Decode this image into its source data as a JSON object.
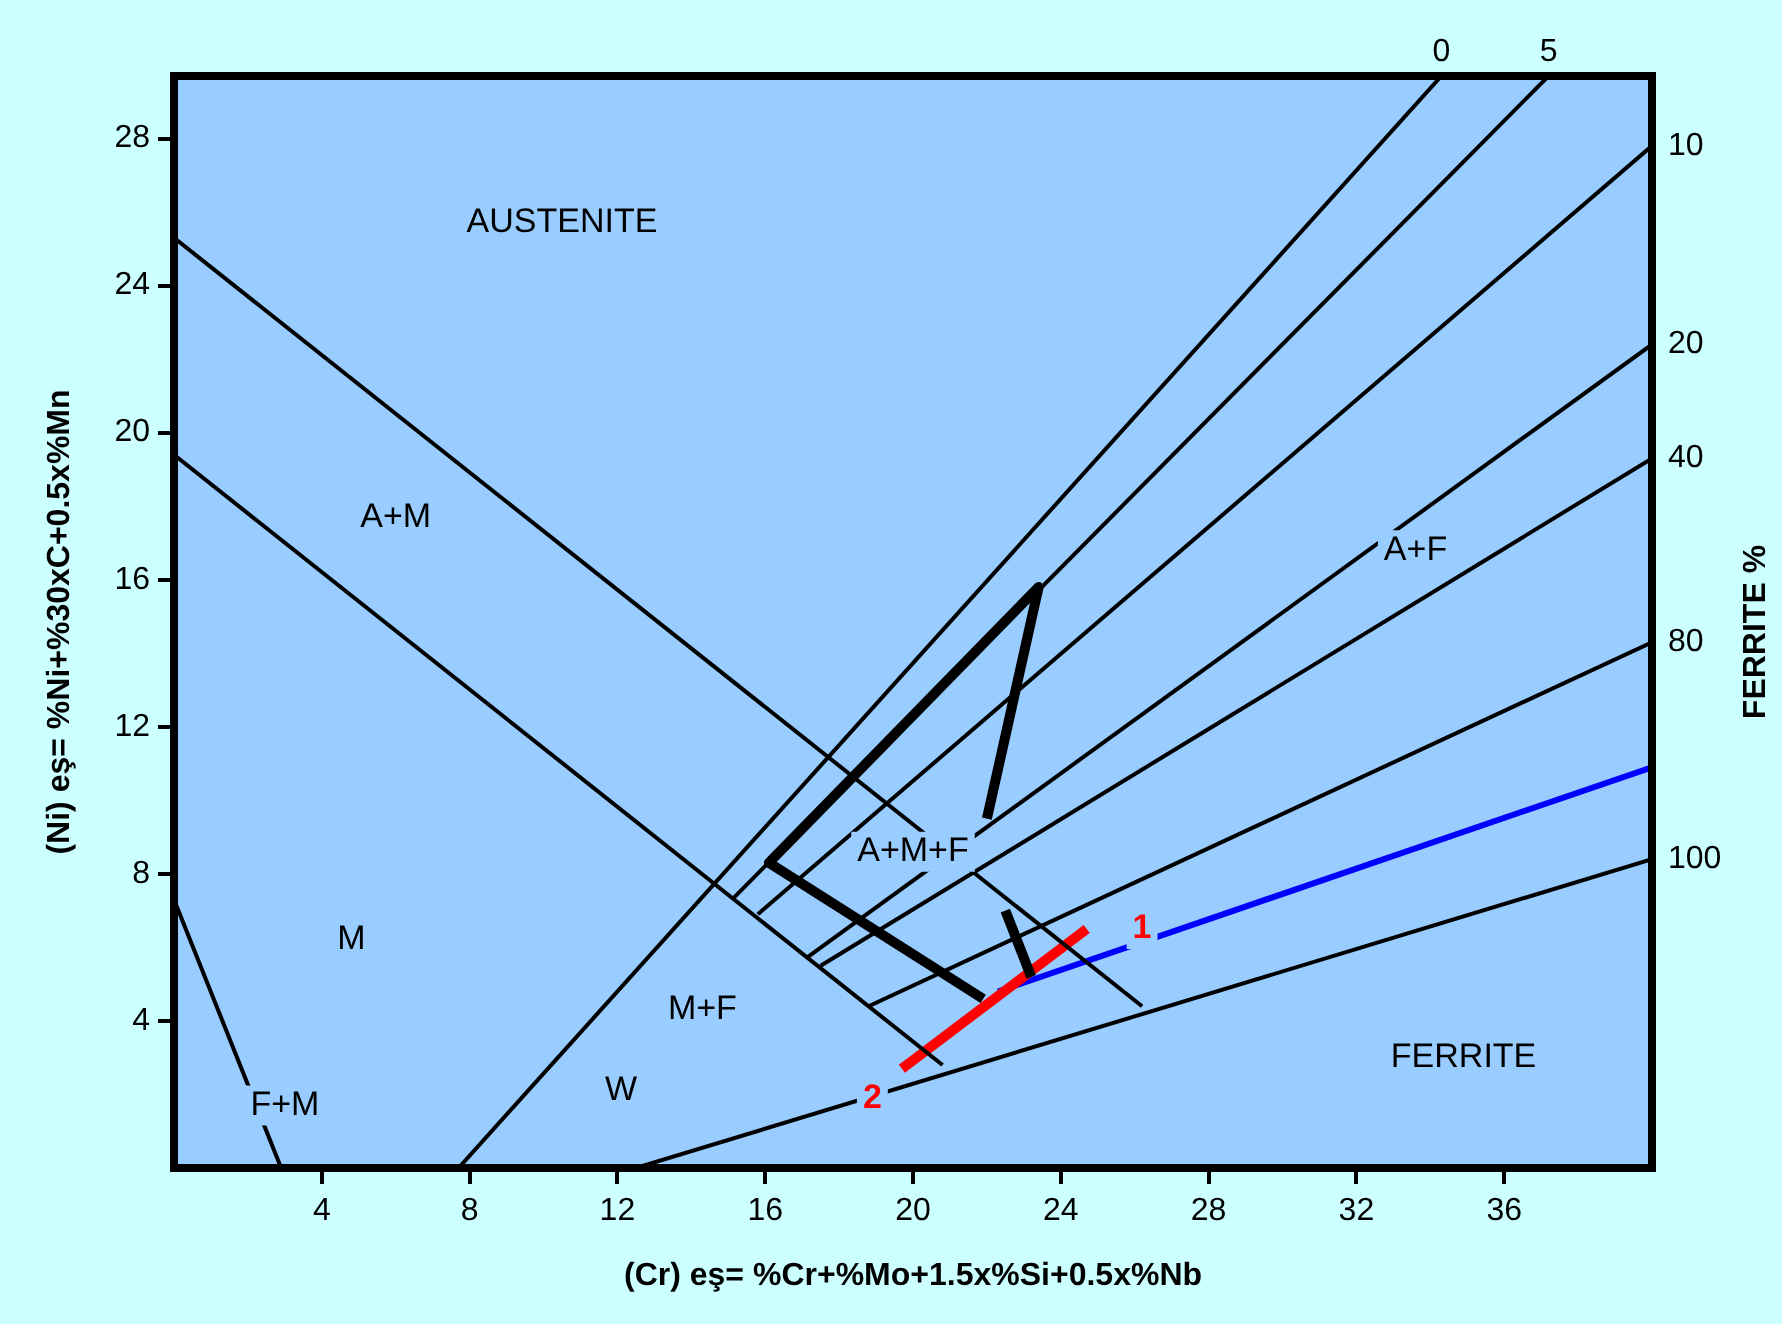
{
  "chart_data": {
    "type": "line",
    "xlabel": "(Cr) eş= %Cr+%Mo+1.5x%Si+0.5x%Nb",
    "ylabel": "(Ni) eş= %Ni+%30xC+0.5x%Mn",
    "y2label": "FERRITE %",
    "xlim": [
      0,
      40
    ],
    "ylim": [
      0,
      29.7
    ],
    "xticks": [
      4,
      8,
      12,
      16,
      20,
      24,
      28,
      32,
      36
    ],
    "yticks": [
      4,
      8,
      12,
      16,
      20,
      24,
      28
    ],
    "grid": false,
    "legend": false,
    "marker": "none",
    "series": [
      {
        "name": "0",
        "color": "#000000",
        "x": [
          7.7,
          34.3
        ],
        "values": [
          0,
          29.7
        ]
      },
      {
        "name": "5",
        "color": "#000000",
        "x": [
          15.1,
          37.2
        ],
        "values": [
          7.3,
          29.7
        ]
      },
      {
        "name": "10",
        "color": "#000000",
        "x": [
          15.8,
          40
        ],
        "values": [
          6.9,
          27.8
        ]
      },
      {
        "name": "20",
        "color": "#000000",
        "x": [
          17.1,
          40
        ],
        "values": [
          5.7,
          22.4
        ]
      },
      {
        "name": "40",
        "color": "#000000",
        "x": [
          17.5,
          40
        ],
        "values": [
          5.5,
          19.3
        ]
      },
      {
        "name": "80",
        "color": "#000000",
        "x": [
          18.8,
          40
        ],
        "values": [
          4.4,
          14.3
        ]
      },
      {
        "name": "100",
        "color": "#000000",
        "x": [
          12.5,
          40
        ],
        "values": [
          0,
          8.4
        ]
      },
      {
        "color": "#000000",
        "x": [
          0,
          26.2
        ],
        "values": [
          25.3,
          4.4
        ]
      },
      {
        "color": "#000000",
        "x": [
          0,
          20.8
        ],
        "values": [
          19.4,
          2.8
        ]
      },
      {
        "color": "#000000",
        "x": [
          0,
          2.9
        ],
        "values": [
          7.3,
          0
        ]
      },
      {
        "color": "#000000",
        "x": [
          21.9,
          16.1,
          23.4,
          22.0
        ],
        "values": [
          4.6,
          8.3,
          15.8,
          9.5
        ]
      },
      {
        "color": "#000000",
        "x": [
          22.5,
          23.2
        ],
        "values": [
          7.0,
          5.2
        ]
      },
      {
        "color": "#ff0000",
        "x": [
          19.7,
          24.7
        ],
        "values": [
          2.7,
          6.5
        ]
      },
      {
        "color": "#0000ff",
        "x": [
          22.3,
          40
        ],
        "values": [
          4.8,
          10.9
        ]
      }
    ],
    "annotations": [
      "AUSTENITE",
      "A+M",
      "A+M+F",
      "A+F",
      "M",
      "M+F",
      "W",
      "F+M",
      "FERRITE",
      {
        "text": "1",
        "x": 26.2,
        "y": 6.5
      },
      {
        "text": "2",
        "x": 18.9,
        "y": 1.9
      }
    ]
  }
}
